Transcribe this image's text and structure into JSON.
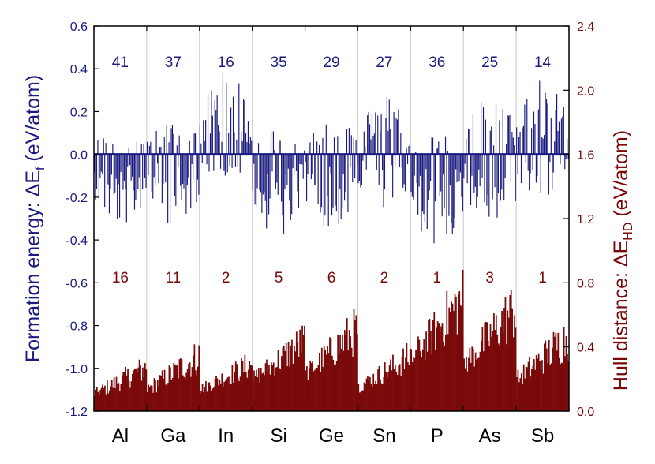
{
  "chart_data": {
    "type": "bar",
    "categories": [
      "Al",
      "Ga",
      "In",
      "Si",
      "Ge",
      "Sn",
      "P",
      "As",
      "Sb"
    ],
    "formation_energy_counts": [
      "41",
      "37",
      "16",
      "35",
      "29",
      "27",
      "36",
      "25",
      "14"
    ],
    "hull_distance_counts": [
      "16",
      "11",
      "2",
      "5",
      "6",
      "2",
      "1",
      "3",
      "1"
    ],
    "left_axis": {
      "label_main": "Formation energy: ΔE",
      "label_sub": "f",
      "label_unit": " (eV/atom)",
      "ylim": [
        -1.2,
        0.6
      ],
      "ticks": [
        "0.6",
        "0.4",
        "0.2",
        "0.0",
        "-0.2",
        "-0.4",
        "-0.6",
        "-0.8",
        "-1.0",
        "-1.2"
      ],
      "color": "#1a1a80"
    },
    "right_axis": {
      "label_main": "Hull distance: ΔE",
      "label_sub": "HD",
      "label_unit": " (eV/atom)",
      "ylim": [
        0.0,
        2.4
      ],
      "ticks": [
        "2.4",
        "2.0",
        "1.6",
        "1.2",
        "0.8",
        "0.4",
        "0.0"
      ],
      "color": "#7a0a0a"
    },
    "series": [
      {
        "color": "#1a1a80",
        "axis": "left",
        "group_ranges": [
          {
            "category": "Al",
            "min": -0.34,
            "max": 0.12
          },
          {
            "category": "Ga",
            "min": -0.33,
            "max": 0.16
          },
          {
            "category": "In",
            "min": -0.12,
            "max": 0.39
          },
          {
            "category": "Si",
            "min": -0.4,
            "max": 0.13
          },
          {
            "category": "Ge",
            "min": -0.35,
            "max": 0.2
          },
          {
            "category": "Sn",
            "min": -0.26,
            "max": 0.29
          },
          {
            "category": "P",
            "min": -0.45,
            "max": 0.1
          },
          {
            "category": "As",
            "min": -0.36,
            "max": 0.28
          },
          {
            "category": "Sb",
            "min": -0.23,
            "max": 0.36
          }
        ]
      },
      {
        "color": "#7a0a0a",
        "axis": "right",
        "group_ranges": [
          {
            "category": "Al",
            "min": 0.02,
            "max": 0.37
          },
          {
            "category": "Ga",
            "min": 0.02,
            "max": 0.47
          },
          {
            "category": "In",
            "min": 0.05,
            "max": 0.39
          },
          {
            "category": "Si",
            "min": 0.07,
            "max": 0.58
          },
          {
            "category": "Ge",
            "min": 0.08,
            "max": 0.68
          },
          {
            "category": "Sn",
            "min": 0.05,
            "max": 0.45
          },
          {
            "category": "P",
            "min": 0.12,
            "max": 0.93
          },
          {
            "category": "As",
            "min": 0.1,
            "max": 0.86
          },
          {
            "category": "Sb",
            "min": 0.05,
            "max": 0.63
          }
        ]
      }
    ],
    "grid": "vertical",
    "legend": "none"
  }
}
